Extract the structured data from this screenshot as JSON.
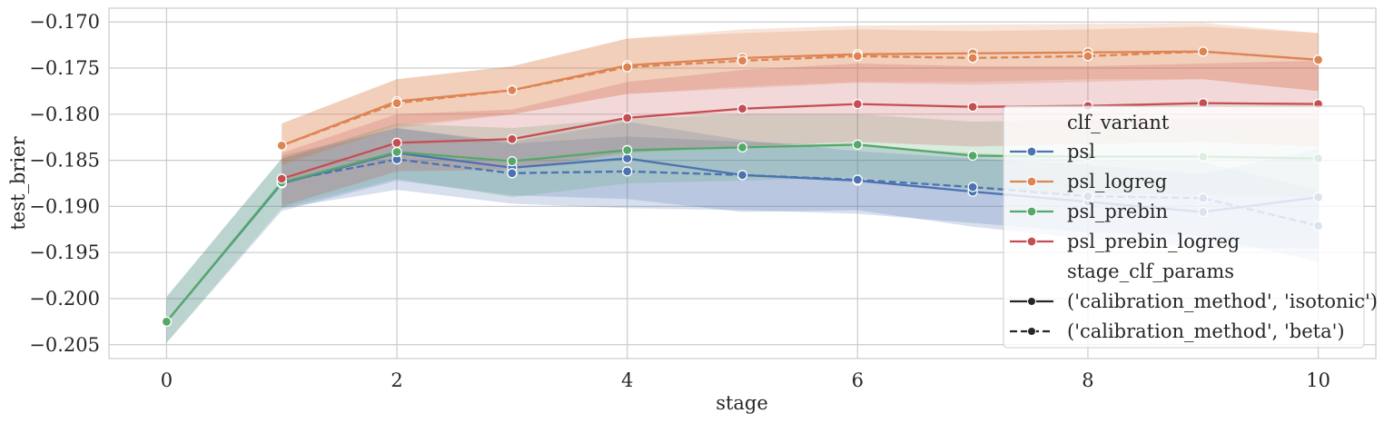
{
  "chart_data": {
    "type": "line",
    "xlabel": "stage",
    "ylabel": "test_brier",
    "xlim": [
      -0.5,
      10.5
    ],
    "ylim": [
      -0.2065,
      -0.1685
    ],
    "x_ticks": [
      0,
      2,
      4,
      6,
      8,
      10
    ],
    "x_tick_labels": [
      "0",
      "2",
      "4",
      "6",
      "8",
      "10"
    ],
    "y_ticks": [
      -0.205,
      -0.2,
      -0.195,
      -0.19,
      -0.185,
      -0.18,
      -0.175,
      -0.17
    ],
    "y_tick_labels": [
      "−0.205",
      "−0.200",
      "−0.195",
      "−0.190",
      "−0.185",
      "−0.180",
      "−0.175",
      "−0.170"
    ],
    "grid": true,
    "legend_position": "right",
    "legend": {
      "hue_title": "clf_variant",
      "style_title": "stage_clf_params",
      "style_entries": [
        {
          "label": "('calibration_method', 'isotonic')",
          "dash": "solid"
        },
        {
          "label": "('calibration_method', 'beta')",
          "dash": "dashed"
        }
      ]
    },
    "series": [
      {
        "name": "psl",
        "color": "#4c72b0",
        "dash": "solid",
        "x": [
          0,
          1,
          2,
          3,
          4,
          5,
          6,
          7,
          8,
          9,
          10
        ],
        "y": [
          -0.2025,
          -0.1875,
          -0.1842,
          -0.1858,
          -0.1848,
          -0.1866,
          -0.1872,
          -0.1884,
          -0.1895,
          -0.1906,
          -0.189
        ],
        "lower": [
          -0.2048,
          -0.1905,
          -0.1872,
          -0.1888,
          -0.1892,
          -0.1906,
          -0.1904,
          -0.1922,
          -0.1935,
          -0.1945,
          -0.1945
        ],
        "upper": [
          -0.1998,
          -0.1848,
          -0.1815,
          -0.183,
          -0.1808,
          -0.1828,
          -0.184,
          -0.1848,
          -0.1855,
          -0.1865,
          -0.1838
        ]
      },
      {
        "name": "psl",
        "color": "#4c72b0",
        "dash": "dashed",
        "x": [
          1,
          2,
          3,
          4,
          5,
          6,
          7,
          8,
          9,
          10
        ],
        "y": [
          -0.1873,
          -0.1849,
          -0.1864,
          -0.1862,
          -0.1866,
          -0.1871,
          -0.1879,
          -0.1889,
          -0.1891,
          -0.1921
        ],
        "lower": [
          -0.1902,
          -0.1882,
          -0.1897,
          -0.1902,
          -0.1904,
          -0.1908,
          -0.1918,
          -0.1928,
          -0.1932,
          -0.196
        ],
        "upper": [
          -0.1845,
          -0.1815,
          -0.1832,
          -0.1824,
          -0.183,
          -0.1834,
          -0.1842,
          -0.185,
          -0.1852,
          -0.1882
        ]
      },
      {
        "name": "psl_logreg",
        "color": "#dd8452",
        "dash": "solid",
        "x": [
          1,
          2,
          3,
          4,
          5,
          6,
          7,
          8,
          9,
          10
        ],
        "y": [
          -0.1834,
          -0.1786,
          -0.1774,
          -0.1747,
          -0.1739,
          -0.1735,
          -0.1734,
          -0.1733,
          -0.1732,
          -0.1741
        ],
        "lower": [
          -0.1855,
          -0.1812,
          -0.18,
          -0.1778,
          -0.177,
          -0.1765,
          -0.1765,
          -0.1762,
          -0.1762,
          -0.1775
        ],
        "upper": [
          -0.181,
          -0.1762,
          -0.1748,
          -0.1718,
          -0.1708,
          -0.1704,
          -0.1703,
          -0.1702,
          -0.1701,
          -0.1712
        ]
      },
      {
        "name": "psl_logreg",
        "color": "#dd8452",
        "dash": "dashed",
        "x": [
          1,
          2,
          3,
          4,
          5,
          6,
          7,
          8,
          9,
          10
        ],
        "y": [
          -0.1834,
          -0.1788,
          -0.1774,
          -0.1749,
          -0.1742,
          -0.1737,
          -0.1739,
          -0.1737,
          -0.1732,
          -0.1741
        ],
        "lower": [
          -0.1855,
          -0.1815,
          -0.18,
          -0.1778,
          -0.1772,
          -0.1766,
          -0.1768,
          -0.1765,
          -0.1762,
          -0.1775
        ],
        "upper": [
          -0.181,
          -0.1762,
          -0.1748,
          -0.1718,
          -0.1712,
          -0.1708,
          -0.171,
          -0.1708,
          -0.1705,
          -0.1712
        ]
      },
      {
        "name": "psl_prebin",
        "color": "#55a868",
        "dash": "solid",
        "x": [
          0,
          1,
          2,
          3,
          4,
          5,
          6,
          7,
          8,
          9,
          10
        ],
        "y": [
          -0.2025,
          -0.1874,
          -0.1841,
          -0.1851,
          -0.1839,
          -0.1836,
          -0.1833,
          -0.1845,
          -0.1846,
          -0.1846,
          -0.1848
        ],
        "lower": [
          -0.2048,
          -0.1902,
          -0.187,
          -0.189,
          -0.1875,
          -0.1872,
          -0.1868,
          -0.1882,
          -0.1885,
          -0.1888,
          -0.189
        ],
        "upper": [
          -0.1998,
          -0.1848,
          -0.181,
          -0.1815,
          -0.1805,
          -0.18,
          -0.18,
          -0.1808,
          -0.1806,
          -0.1805,
          -0.1805
        ]
      },
      {
        "name": "psl_prebin_logreg",
        "color": "#c44e52",
        "dash": "solid",
        "x": [
          1,
          2,
          3,
          4,
          5,
          6,
          7,
          8,
          9,
          10
        ],
        "y": [
          -0.187,
          -0.1831,
          -0.1827,
          -0.1804,
          -0.1794,
          -0.1789,
          -0.1792,
          -0.1791,
          -0.1788,
          -0.1789
        ],
        "lower": [
          -0.19,
          -0.1862,
          -0.186,
          -0.1842,
          -0.1835,
          -0.183,
          -0.1835,
          -0.1832,
          -0.183,
          -0.1835
        ],
        "upper": [
          -0.1842,
          -0.18,
          -0.1795,
          -0.1765,
          -0.1752,
          -0.1745,
          -0.1748,
          -0.1748,
          -0.1745,
          -0.1742
        ]
      }
    ]
  }
}
